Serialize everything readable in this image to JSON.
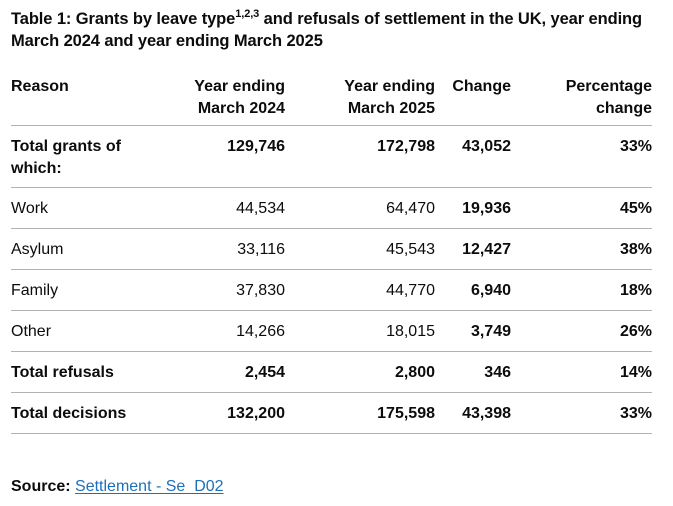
{
  "table": {
    "caption_prefix": "Table 1: Grants by leave type",
    "caption_sup": "1,2,3",
    "caption_suffix": " and refusals of settlement in the UK, year ending March 2024 and year ending March 2025",
    "headers": {
      "reason": "Reason",
      "y2024_line1": "Year ending",
      "y2024_line2": "March 2024",
      "y2025_line1": "Year ending",
      "y2025_line2": "March 2025",
      "change": "Change",
      "pct_line1": "Percentage",
      "pct_line2": "change"
    },
    "rows": [
      {
        "reason": "Total grants of which:",
        "y2024": "129,746",
        "y2025": "172,798",
        "change": "43,052",
        "pct": "33%"
      },
      {
        "reason": "Work",
        "y2024": "44,534",
        "y2025": "64,470",
        "change": "19,936",
        "pct": "45%"
      },
      {
        "reason": "Asylum",
        "y2024": "33,116",
        "y2025": "45,543",
        "change": "12,427",
        "pct": "38%"
      },
      {
        "reason": "Family",
        "y2024": "37,830",
        "y2025": "44,770",
        "change": "6,940",
        "pct": "18%"
      },
      {
        "reason": "Other",
        "y2024": "14,266",
        "y2025": "18,015",
        "change": "3,749",
        "pct": "26%"
      },
      {
        "reason": "Total refusals",
        "y2024": "2,454",
        "y2025": "2,800",
        "change": "346",
        "pct": "14%"
      },
      {
        "reason": "Total decisions",
        "y2024": "132,200",
        "y2025": "175,598",
        "change": "43,398",
        "pct": "33%"
      }
    ]
  },
  "source": {
    "label": "Source:",
    "link_text": "Settlement - Se_D02"
  }
}
